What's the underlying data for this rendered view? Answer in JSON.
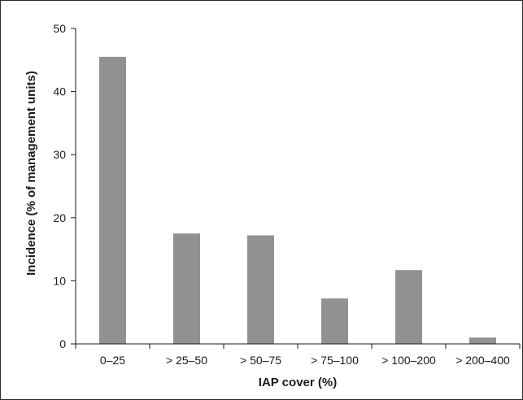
{
  "chart_data": {
    "type": "bar",
    "title": "",
    "xlabel": "IAP cover (%)",
    "ylabel": "Incidence (% of management units)",
    "categories": [
      "0–25",
      "> 25–50",
      "> 50–75",
      "> 75–100",
      "> 100–200",
      "> 200–400"
    ],
    "values": [
      45.5,
      17.5,
      17.2,
      7.2,
      11.7,
      1.0
    ],
    "ylim": [
      0,
      50
    ],
    "yticks": [
      "0",
      "10",
      "20",
      "30",
      "40",
      "50"
    ],
    "grid": false,
    "legend": "none",
    "bar_color": "#919191",
    "axis_color": "#1a1a1a"
  }
}
